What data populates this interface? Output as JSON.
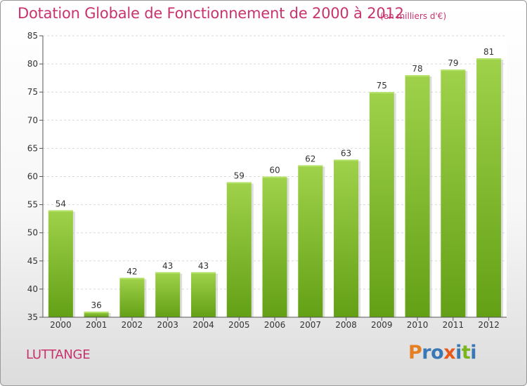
{
  "title": "Dotation Globale de Fonctionnement de 2000 à 2012",
  "unit_note": "(en milliers d'€)",
  "commune": "LUTTANGE",
  "logo": {
    "letters": [
      "P",
      "r",
      "o",
      "x",
      "i",
      "t",
      "i"
    ],
    "colors": [
      "#e67e22",
      "#3a78b5",
      "#3a78b5",
      "#e85a1c",
      "#3a78b5",
      "#7ab51d",
      "#3a78b5"
    ]
  },
  "colors": {
    "bar": "#7ab51d",
    "title": "#c8336e"
  },
  "chart_data": {
    "type": "bar",
    "categories": [
      "2000",
      "2001",
      "2002",
      "2003",
      "2004",
      "2005",
      "2006",
      "2007",
      "2008",
      "2009",
      "2010",
      "2011",
      "2012"
    ],
    "values": [
      54,
      36,
      42,
      43,
      43,
      59,
      60,
      62,
      63,
      75,
      78,
      79,
      81
    ],
    "title": "Dotation Globale de Fonctionnement de 2000 à 2012",
    "xlabel": "",
    "ylabel": "",
    "ylim": [
      35,
      85
    ],
    "yticks": [
      35,
      40,
      45,
      50,
      55,
      60,
      65,
      70,
      75,
      80,
      85
    ],
    "grid": true
  }
}
